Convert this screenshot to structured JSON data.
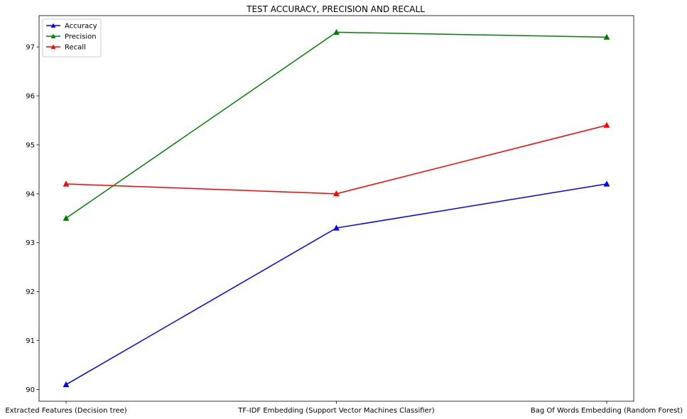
{
  "chart_data": {
    "type": "line",
    "title": "TEST ACCURACY, PRECISION AND RECALL",
    "xlabel": "",
    "ylabel": "",
    "categories": [
      "Extracted Features (Decision tree)",
      "TF-IDF Embedding (Support Vector Machines Classifier)",
      "Bag Of Words Embedding (Random Forest)"
    ],
    "ylim": [
      89.76,
      97.64
    ],
    "yticks": [
      90,
      91,
      92,
      93,
      94,
      95,
      96,
      97
    ],
    "ytick_labels": [
      "90",
      "91",
      "92",
      "93",
      "94",
      "95",
      "96",
      "97"
    ],
    "grid": false,
    "legend_position": "top-left",
    "marker": "triangle-up",
    "series": [
      {
        "name": "Accuracy",
        "color": "#0000ff",
        "values": [
          90.1,
          93.3,
          94.2
        ]
      },
      {
        "name": "Precision",
        "color": "#008000",
        "values": [
          93.5,
          97.3,
          97.2
        ]
      },
      {
        "name": "Recall",
        "color": "#ff0000",
        "values": [
          94.2,
          94.0,
          95.4
        ]
      }
    ]
  }
}
